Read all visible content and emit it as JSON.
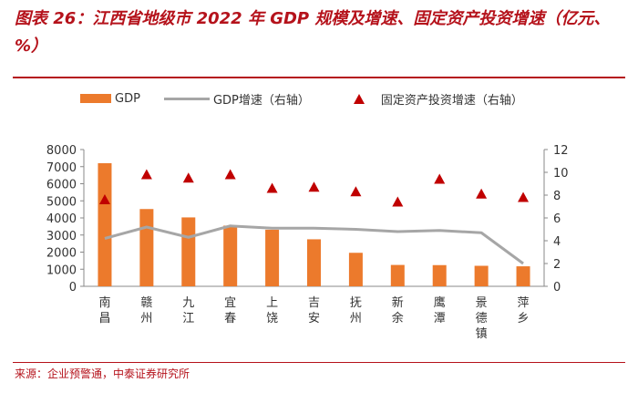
{
  "title": "图表 26：江西省地级市 2022 年 GDP 规模及增速、固定资产投资增速（亿元、%）",
  "source": "来源：企业预警通，中泰证券研究所",
  "legend": {
    "gdp": "GDP",
    "gdp_growth": "GDP增速（右轴）",
    "fai_growth": "固定资产投资增速（右轴）"
  },
  "colors": {
    "bar": "#ec7a2c",
    "line": "#a6a6a6",
    "marker": "#c00000",
    "accent": "#b5121b"
  },
  "chart_data": {
    "type": "bar",
    "title": "江西省地级市 2022 年 GDP 规模及增速、固定资产投资增速",
    "categories": [
      "南昌",
      "赣州",
      "九江",
      "宜春",
      "上饶",
      "吉安",
      "抚州",
      "新余",
      "鹰潭",
      "景德镇",
      "萍乡"
    ],
    "series": [
      {
        "name": "GDP",
        "type": "bar",
        "axis": "left",
        "values": [
          7200,
          4520,
          4030,
          3550,
          3310,
          2750,
          1960,
          1250,
          1240,
          1200,
          1170
        ]
      },
      {
        "name": "GDP增速（右轴）",
        "type": "line",
        "axis": "right",
        "values": [
          4.2,
          5.2,
          4.3,
          5.3,
          5.1,
          5.1,
          5.0,
          4.8,
          4.9,
          4.7,
          2.0
        ]
      },
      {
        "name": "固定资产投资增速（右轴）",
        "type": "scatter",
        "axis": "right",
        "values": [
          7.6,
          9.8,
          9.5,
          9.8,
          8.6,
          8.7,
          8.3,
          7.4,
          9.4,
          8.1,
          7.8
        ]
      }
    ],
    "y_left": {
      "min": 0,
      "max": 8000,
      "ticks": [
        "0",
        "1000",
        "2000",
        "3000",
        "4000",
        "5000",
        "6000",
        "7000",
        "8000"
      ]
    },
    "y_right": {
      "min": 0,
      "max": 12,
      "ticks": [
        "0",
        "2",
        "4",
        "6",
        "8",
        "10",
        "12"
      ]
    },
    "grid": false,
    "legend_position": "top"
  }
}
